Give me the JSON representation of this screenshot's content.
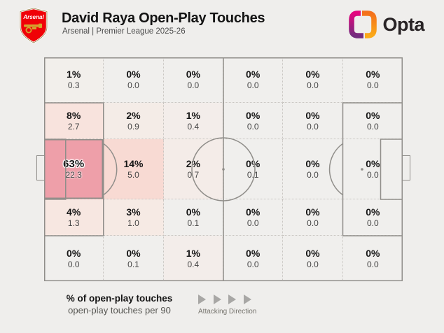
{
  "header": {
    "title": "David Raya Open-Play Touches",
    "subtitle": "Arsenal | Premier League 2025-26",
    "club": "Arsenal",
    "brand": "Opta"
  },
  "legend": {
    "primary": "% of open-play touches",
    "secondary": "open-play touches per 90",
    "direction_label": "Attacking Direction"
  },
  "colors": {
    "background": "#efeeec",
    "pitch_line": "#908e8a",
    "grid_dotted_line": "#c8c5c1",
    "max_zone_fill": "#ee9fa9",
    "arsenal_red": "#ef0107",
    "opta_magenta": "#e4067e",
    "opta_purple": "#722c7e",
    "opta_orange": "#f4711c",
    "opta_yellow": "#fbaa19"
  },
  "chart_data": {
    "type": "heatmap",
    "title": "David Raya Open-Play Touches",
    "subtitle": "Arsenal | Premier League 2025-26",
    "rows": 5,
    "cols": 6,
    "orientation": "attacking left to right",
    "value_labels": [
      "% of open-play touches",
      "open-play touches per 90"
    ],
    "pct_values": [
      [
        1,
        0,
        0,
        0,
        0,
        0
      ],
      [
        8,
        2,
        1,
        0,
        0,
        0
      ],
      [
        63,
        14,
        2,
        0,
        0,
        0
      ],
      [
        4,
        3,
        0,
        0,
        0,
        0
      ],
      [
        0,
        0,
        1,
        0,
        0,
        0
      ]
    ],
    "per90_values": [
      [
        0.3,
        0.0,
        0.0,
        0.0,
        0.0,
        0.0
      ],
      [
        2.7,
        0.9,
        0.4,
        0.0,
        0.0,
        0.0
      ],
      [
        22.3,
        5.0,
        0.7,
        0.1,
        0.0,
        0.0
      ],
      [
        1.3,
        1.0,
        0.1,
        0.0,
        0.0,
        0.0
      ],
      [
        0.0,
        0.1,
        0.4,
        0.0,
        0.0,
        0.0
      ]
    ],
    "cells": [
      {
        "pct": "1%",
        "per90": "0.3",
        "color": "#f2efeb"
      },
      {
        "pct": "0%",
        "per90": "0.0",
        "color": "#f0efed"
      },
      {
        "pct": "0%",
        "per90": "0.0",
        "color": "#f0efed"
      },
      {
        "pct": "0%",
        "per90": "0.0",
        "color": "#f0efed"
      },
      {
        "pct": "0%",
        "per90": "0.0",
        "color": "#f0efed"
      },
      {
        "pct": "0%",
        "per90": "0.0",
        "color": "#f0efed"
      },
      {
        "pct": "8%",
        "per90": "2.7",
        "color": "#f8e3dd"
      },
      {
        "pct": "2%",
        "per90": "0.9",
        "color": "#f4ece7"
      },
      {
        "pct": "1%",
        "per90": "0.4",
        "color": "#f3edea"
      },
      {
        "pct": "0%",
        "per90": "0.0",
        "color": "#f0efed"
      },
      {
        "pct": "0%",
        "per90": "0.0",
        "color": "#f0efed"
      },
      {
        "pct": "0%",
        "per90": "0.0",
        "color": "#f0efed"
      },
      {
        "pct": "63%",
        "per90": "22.3",
        "color": "#ee9fa9",
        "highlight": true
      },
      {
        "pct": "14%",
        "per90": "5.0",
        "color": "#f8dad3"
      },
      {
        "pct": "2%",
        "per90": "0.7",
        "color": "#f4ece8"
      },
      {
        "pct": "0%",
        "per90": "0.1",
        "color": "#f0efed"
      },
      {
        "pct": "0%",
        "per90": "0.0",
        "color": "#f0efed"
      },
      {
        "pct": "0%",
        "per90": "0.0",
        "color": "#f0efed"
      },
      {
        "pct": "4%",
        "per90": "1.3",
        "color": "#f7e7e1"
      },
      {
        "pct": "3%",
        "per90": "1.0",
        "color": "#f6eae4"
      },
      {
        "pct": "0%",
        "per90": "0.1",
        "color": "#f0efed"
      },
      {
        "pct": "0%",
        "per90": "0.0",
        "color": "#f0efed"
      },
      {
        "pct": "0%",
        "per90": "0.0",
        "color": "#f0efed"
      },
      {
        "pct": "0%",
        "per90": "0.0",
        "color": "#f0efed"
      },
      {
        "pct": "0%",
        "per90": "0.0",
        "color": "#f0efed"
      },
      {
        "pct": "0%",
        "per90": "0.1",
        "color": "#f0efed"
      },
      {
        "pct": "1%",
        "per90": "0.4",
        "color": "#f3edea"
      },
      {
        "pct": "0%",
        "per90": "0.0",
        "color": "#f0efed"
      },
      {
        "pct": "0%",
        "per90": "0.0",
        "color": "#f0efed"
      },
      {
        "pct": "0%",
        "per90": "0.0",
        "color": "#f0efed"
      }
    ]
  }
}
